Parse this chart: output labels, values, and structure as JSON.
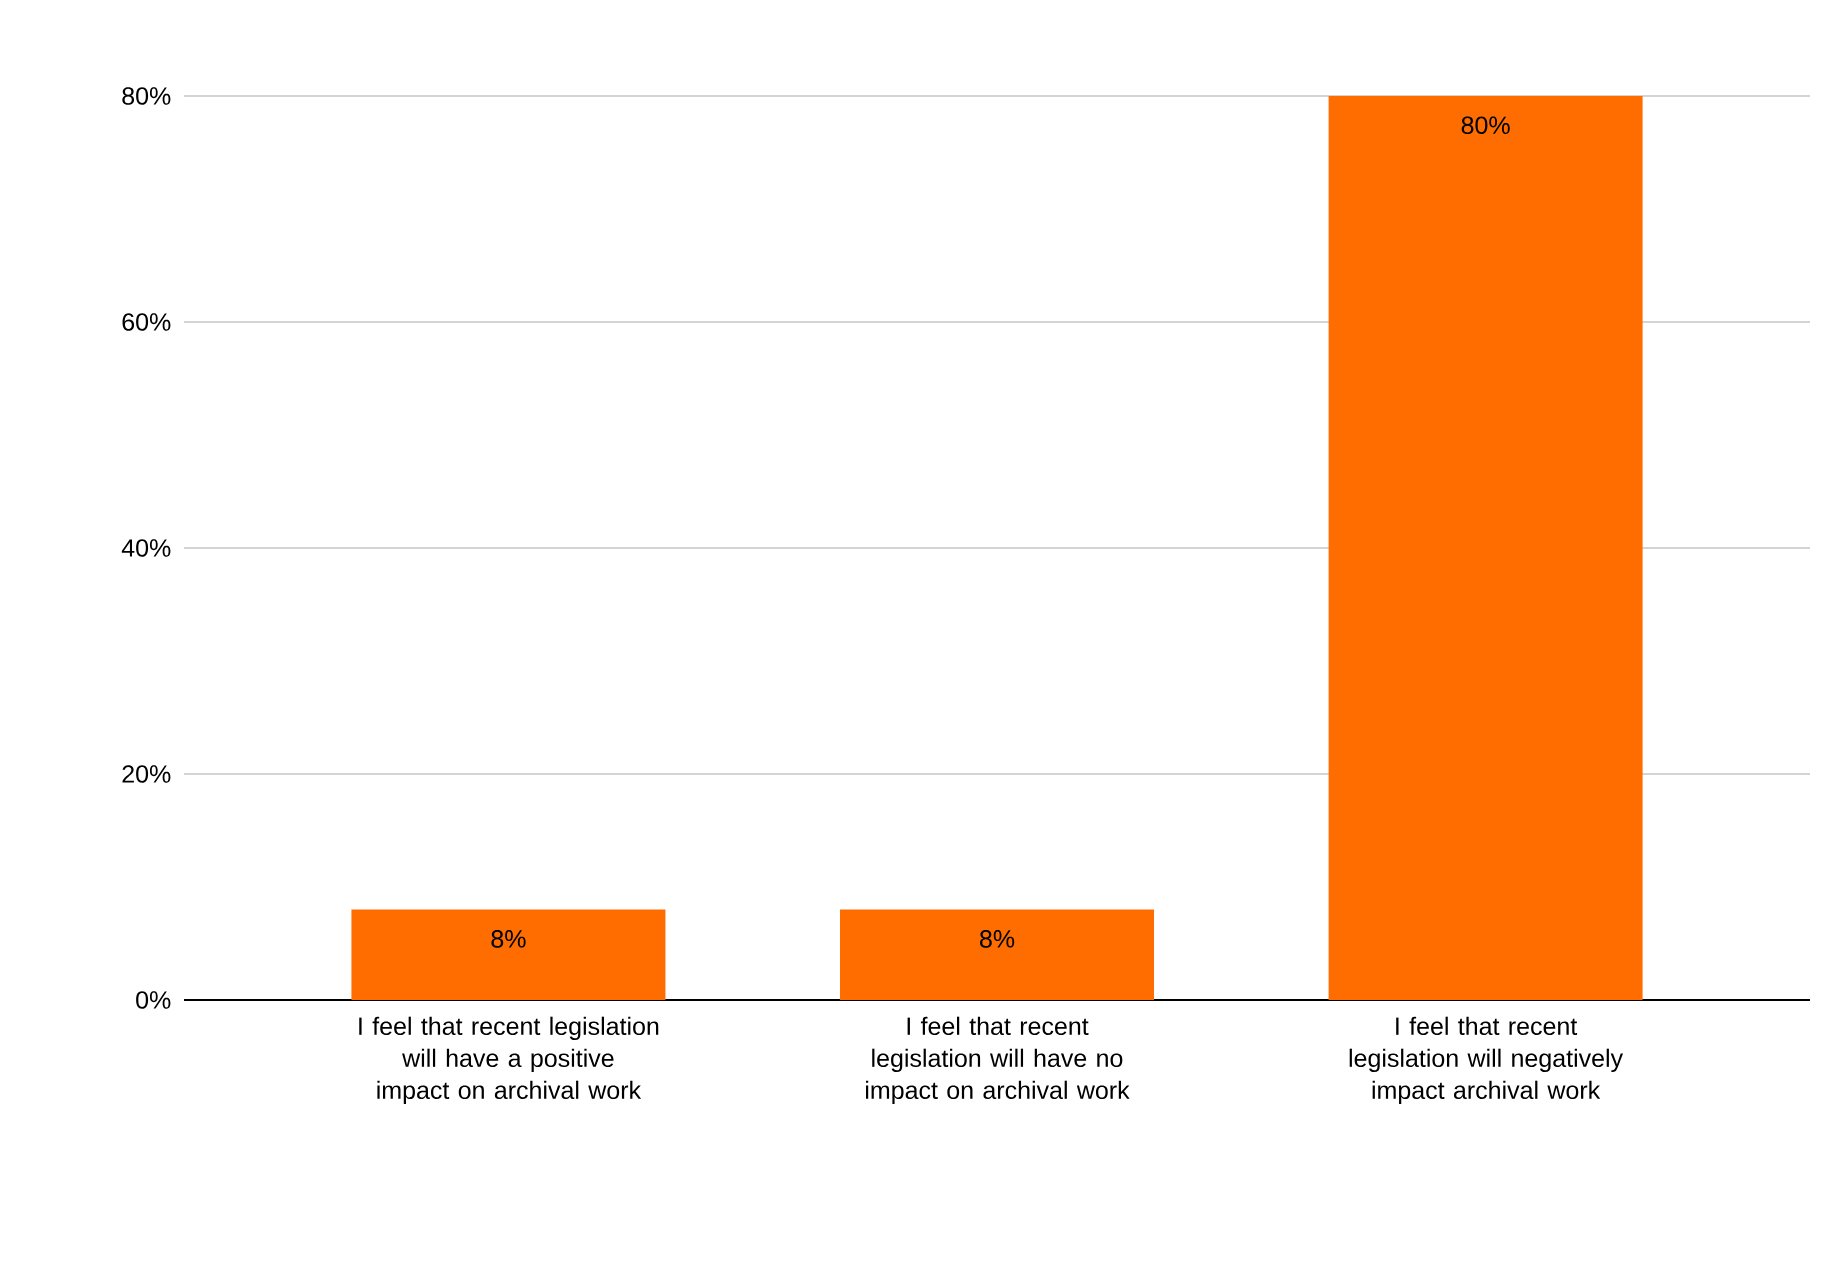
{
  "chart_data": {
    "type": "bar",
    "categories": [
      "I feel that recent legislation will have a positive impact on archival work",
      "I feel that recent legislation will have no impact on archival work",
      "I feel that recent legislation will negatively impact archival work"
    ],
    "values": [
      8,
      8,
      80
    ],
    "value_labels": [
      "8%",
      "8%",
      "80%"
    ],
    "color": "#ff6d01",
    "ylim": [
      0,
      80
    ],
    "yticks": [
      {
        "value": 0,
        "label": "0%"
      },
      {
        "value": 20,
        "label": "20%"
      },
      {
        "value": 40,
        "label": "40%"
      },
      {
        "value": 60,
        "label": "60%"
      },
      {
        "value": 80,
        "label": "80%"
      }
    ],
    "grid": "y"
  }
}
